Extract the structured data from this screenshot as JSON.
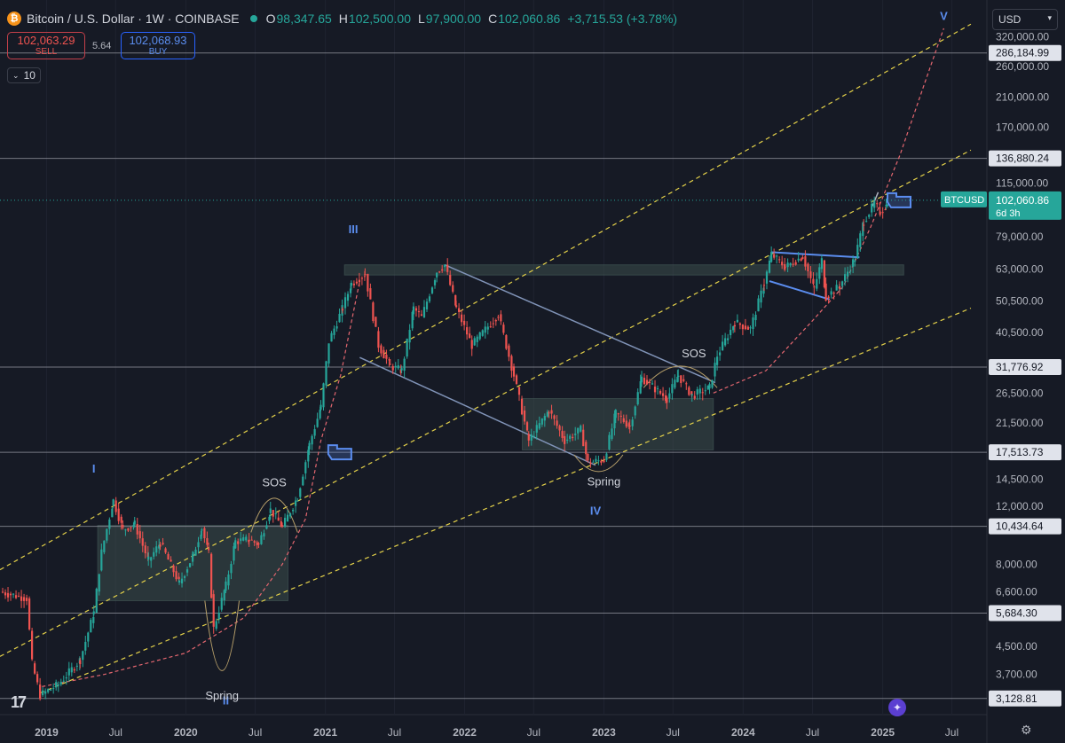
{
  "header": {
    "coin_glyph": "₿",
    "symbol_title": "Bitcoin / U.S. Dollar · 1W · COINBASE",
    "o_label": "O",
    "o_value": "98,347.65",
    "h_label": "H",
    "h_value": "102,500.00",
    "l_label": "L",
    "l_value": "97,900.00",
    "c_label": "C",
    "c_value": "102,060.86",
    "change": "+3,715.53 (+3.78%)"
  },
  "trade": {
    "sell_price": "102,063.29",
    "sell_label": "SELL",
    "spread": "5.64",
    "buy_price": "102,068.93",
    "buy_label": "BUY"
  },
  "volume_setting": "10",
  "currency": "USD",
  "tv_logo_text": "17",
  "gear_glyph": "⚙",
  "star_glyph": "✦",
  "colors": {
    "bg": "#161a25",
    "up": "#26a69a",
    "down": "#ef5350",
    "yellow": "#e5d24a",
    "pink": "#e3666f",
    "box": "#3d4f4c",
    "blue": "#5b8def",
    "channel": "#8194b8"
  },
  "chart_data": {
    "type": "candlestick",
    "symbol": "BTCUSD",
    "scale": "log",
    "ylim": [
      2900,
      380000
    ],
    "xlim": [
      "2018-09-01",
      "2025-10-01"
    ],
    "x_ticks": [
      {
        "date": "2019-01-01",
        "label": "2019"
      },
      {
        "date": "2019-07-01",
        "label": "Jul"
      },
      {
        "date": "2020-01-01",
        "label": "2020"
      },
      {
        "date": "2020-07-01",
        "label": "Jul"
      },
      {
        "date": "2021-01-01",
        "label": "2021"
      },
      {
        "date": "2021-07-01",
        "label": "Jul"
      },
      {
        "date": "2022-01-01",
        "label": "2022"
      },
      {
        "date": "2022-07-01",
        "label": "Jul"
      },
      {
        "date": "2023-01-01",
        "label": "2023"
      },
      {
        "date": "2023-07-01",
        "label": "Jul"
      },
      {
        "date": "2024-01-01",
        "label": "2024"
      },
      {
        "date": "2024-07-01",
        "label": "Jul"
      },
      {
        "date": "2025-01-01",
        "label": "2025"
      },
      {
        "date": "2025-07-01",
        "label": "Jul"
      }
    ],
    "y_ticks": [
      {
        "value": 320000,
        "label": "320,000.00"
      },
      {
        "value": 260000,
        "label": "260,000.00"
      },
      {
        "value": 210000,
        "label": "210,000.00"
      },
      {
        "value": 170000,
        "label": "170,000.00"
      },
      {
        "value": 115000,
        "label": "115,000.00"
      },
      {
        "value": 79000,
        "label": "79,000.00"
      },
      {
        "value": 63000,
        "label": "63,000.00"
      },
      {
        "value": 50500,
        "label": "50,500.00"
      },
      {
        "value": 40500,
        "label": "40,500.00"
      },
      {
        "value": 26500,
        "label": "26,500.00"
      },
      {
        "value": 21500,
        "label": "21,500.00"
      },
      {
        "value": 14500,
        "label": "14,500.00"
      },
      {
        "value": 12000,
        "label": "12,000.00"
      },
      {
        "value": 8000,
        "label": "8,000.00"
      },
      {
        "value": 6600,
        "label": "6,600.00"
      },
      {
        "value": 4500,
        "label": "4,500.00"
      },
      {
        "value": 3700,
        "label": "3,700.00"
      }
    ],
    "horizontal_levels": [
      {
        "value": 286184.99,
        "label": "286,184.99"
      },
      {
        "value": 136880.24,
        "label": "136,880.24"
      },
      {
        "value": 31776.92,
        "label": "31,776.92"
      },
      {
        "value": 17513.73,
        "label": "17,513.73"
      },
      {
        "value": 10434.64,
        "label": "10,434.64"
      },
      {
        "value": 5684.3,
        "label": "5,684.30"
      },
      {
        "value": 3128.81,
        "label": "3,128.81"
      }
    ],
    "last_price": {
      "value": 102060.86,
      "label": "102,060.86",
      "countdown": "6d 3h",
      "symbol_label": "BTCUSD"
    },
    "price_path": [
      [
        "2018-09-01",
        6600
      ],
      [
        "2018-11-10",
        6300
      ],
      [
        "2018-11-24",
        4000
      ],
      [
        "2018-12-15",
        3200
      ],
      [
        "2019-02-01",
        3450
      ],
      [
        "2019-03-30",
        4100
      ],
      [
        "2019-05-05",
        5700
      ],
      [
        "2019-05-25",
        8700
      ],
      [
        "2019-06-25",
        12500
      ],
      [
        "2019-07-20",
        10200
      ],
      [
        "2019-08-20",
        10600
      ],
      [
        "2019-09-25",
        8200
      ],
      [
        "2019-10-26",
        9300
      ],
      [
        "2019-12-15",
        7000
      ],
      [
        "2020-01-20",
        8500
      ],
      [
        "2020-02-12",
        10300
      ],
      [
        "2020-03-01",
        8600
      ],
      [
        "2020-03-14",
        5100
      ],
      [
        "2020-04-15",
        6900
      ],
      [
        "2020-05-10",
        9400
      ],
      [
        "2020-06-15",
        9500
      ],
      [
        "2020-07-10",
        9200
      ],
      [
        "2020-08-10",
        11700
      ],
      [
        "2020-09-10",
        10400
      ],
      [
        "2020-10-20",
        12800
      ],
      [
        "2020-11-20",
        18500
      ],
      [
        "2020-12-20",
        24000
      ],
      [
        "2021-01-10",
        38000
      ],
      [
        "2021-02-15",
        48000
      ],
      [
        "2021-03-10",
        57000
      ],
      [
        "2021-04-15",
        61000
      ],
      [
        "2021-05-20",
        37000
      ],
      [
        "2021-06-20",
        32000
      ],
      [
        "2021-07-20",
        31000
      ],
      [
        "2021-08-20",
        48000
      ],
      [
        "2021-09-10",
        45000
      ],
      [
        "2021-10-20",
        62000
      ],
      [
        "2021-11-10",
        65000
      ],
      [
        "2021-12-10",
        48000
      ],
      [
        "2022-01-20",
        37000
      ],
      [
        "2022-03-30",
        46000
      ],
      [
        "2022-05-10",
        30000
      ],
      [
        "2022-06-18",
        19000
      ],
      [
        "2022-08-10",
        23500
      ],
      [
        "2022-09-20",
        19000
      ],
      [
        "2022-11-01",
        20500
      ],
      [
        "2022-11-20",
        16300
      ],
      [
        "2023-01-01",
        16600
      ],
      [
        "2023-02-01",
        23000
      ],
      [
        "2023-03-10",
        21000
      ],
      [
        "2023-04-10",
        29500
      ],
      [
        "2023-06-15",
        25500
      ],
      [
        "2023-07-15",
        30000
      ],
      [
        "2023-08-20",
        26000
      ],
      [
        "2023-10-05",
        27500
      ],
      [
        "2023-10-25",
        34500
      ],
      [
        "2023-12-10",
        43500
      ],
      [
        "2024-01-20",
        41500
      ],
      [
        "2024-02-25",
        57000
      ],
      [
        "2024-03-15",
        70000
      ],
      [
        "2024-04-20",
        64000
      ],
      [
        "2024-06-05",
        69000
      ],
      [
        "2024-07-05",
        55000
      ],
      [
        "2024-07-25",
        67000
      ],
      [
        "2024-08-05",
        52000
      ],
      [
        "2024-09-10",
        56000
      ],
      [
        "2024-10-20",
        68000
      ],
      [
        "2024-11-12",
        88000
      ],
      [
        "2024-12-10",
        100000
      ],
      [
        "2024-12-25",
        94000
      ],
      [
        "2025-01-10",
        98347.65
      ],
      [
        "2025-01-14",
        102060.86
      ]
    ],
    "channel_lines": [
      {
        "name": "upper",
        "points": [
          [
            "2018-09-01",
            7700
          ],
          [
            "2025-08-20",
            350000
          ]
        ]
      },
      {
        "name": "middle",
        "points": [
          [
            "2018-09-01",
            4200
          ],
          [
            "2025-08-20",
            145000
          ]
        ]
      },
      {
        "name": "lower",
        "points": [
          [
            "2018-12-15",
            3250
          ],
          [
            "2025-08-20",
            48000
          ]
        ]
      }
    ],
    "parabolic_curve": [
      [
        "2018-12-20",
        3400
      ],
      [
        "2019-06-01",
        3700
      ],
      [
        "2020-01-01",
        4300
      ],
      [
        "2020-06-01",
        5500
      ],
      [
        "2020-09-10",
        8000
      ],
      [
        "2020-11-10",
        11000
      ],
      [
        "2020-12-20",
        19000
      ],
      [
        "2021-02-10",
        30000
      ],
      [
        "2021-04-01",
        58000
      ]
    ],
    "parabolic_curve_2": [
      [
        "2023-10-15",
        26500
      ],
      [
        "2024-03-01",
        31000
      ],
      [
        "2024-07-01",
        44000
      ],
      [
        "2024-09-20",
        56000
      ],
      [
        "2024-12-01",
        85000
      ],
      [
        "2025-02-15",
        140000
      ],
      [
        "2025-04-20",
        230000
      ],
      [
        "2025-06-10",
        340000
      ]
    ],
    "boxes": [
      {
        "from": "2019-05-15",
        "to": "2020-09-25",
        "low": 6200,
        "high": 10500
      },
      {
        "from": "2021-02-20",
        "to": "2025-02-25",
        "low": 60500,
        "high": 65000
      },
      {
        "from": "2022-06-01",
        "to": "2023-10-15",
        "low": 17800,
        "high": 25500
      }
    ],
    "wyckoff_lines": [
      {
        "name": "descending-channel-top",
        "points": [
          [
            "2021-11-10",
            65000
          ],
          [
            "2023-10-20",
            28500
          ]
        ]
      },
      {
        "name": "descending-channel-bottom",
        "points": [
          [
            "2021-04-01",
            34000
          ],
          [
            "2022-12-10",
            16000
          ]
        ]
      },
      {
        "name": "bull-flag-top",
        "points": [
          [
            "2024-03-15",
            71000
          ],
          [
            "2024-11-01",
            68500
          ]
        ]
      },
      {
        "name": "bull-flag-bottom",
        "points": [
          [
            "2024-03-10",
            58000
          ],
          [
            "2024-08-15",
            51000
          ]
        ]
      },
      {
        "name": "pennant-top",
        "points": [
          [
            "2024-12-05",
            98000
          ],
          [
            "2024-12-20",
            108000
          ]
        ]
      }
    ],
    "annotations": [
      {
        "text": "I",
        "date": "2019-05-05",
        "value": 15200,
        "color": "#5b8def"
      },
      {
        "text": "II",
        "date": "2020-04-15",
        "value": 3000,
        "color": "#5b8def"
      },
      {
        "text": "III",
        "date": "2021-03-15",
        "value": 81000,
        "color": "#5b8def"
      },
      {
        "text": "IV",
        "date": "2022-12-10",
        "value": 11300,
        "color": "#5b8def"
      },
      {
        "text": "V",
        "date": "2025-06-10",
        "value": 360000,
        "color": "#5b8def"
      },
      {
        "text": "SOS",
        "date": "2020-08-20",
        "value": 13800,
        "color": "#d1d4dc"
      },
      {
        "text": "SOS",
        "date": "2023-08-25",
        "value": 34000,
        "color": "#d1d4dc"
      },
      {
        "text": "Spring",
        "date": "2020-04-05",
        "value": 3100,
        "color": "#d1d4dc"
      },
      {
        "text": "Spring",
        "date": "2023-01-01",
        "value": 13900,
        "color": "#d1d4dc"
      }
    ],
    "arcs": [
      {
        "from": "2020-06-20",
        "to": "2020-10-20",
        "peak": 12700,
        "base": 10000
      },
      {
        "from": "2023-04-15",
        "to": "2023-10-25",
        "peak": 32000,
        "base": 27500
      },
      {
        "from": "2020-02-20",
        "to": "2020-05-20",
        "peak": 3800,
        "base": 6200,
        "inverted": true
      },
      {
        "from": "2022-10-15",
        "to": "2023-02-20",
        "peak": 15300,
        "base": 17200,
        "inverted": true
      }
    ],
    "pointers": [
      {
        "date": "2021-02-10",
        "value": 17513.73
      },
      {
        "date": "2025-02-15",
        "value": 102060.86
      }
    ]
  }
}
